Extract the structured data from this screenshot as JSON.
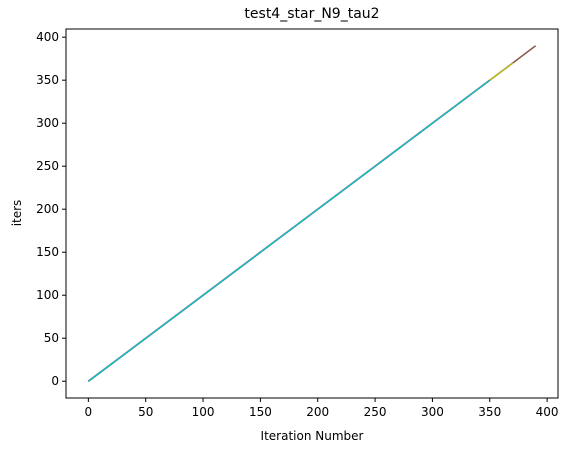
{
  "chart_data": {
    "type": "line",
    "title": "test4_star_N9_tau2",
    "xlabel": "Iteration Number",
    "ylabel": "iters",
    "xlim": [
      -19.5,
      409.5
    ],
    "ylim": [
      -19.5,
      409.5
    ],
    "xticks": [
      0,
      50,
      100,
      150,
      200,
      250,
      300,
      350,
      400
    ],
    "yticks": [
      0,
      50,
      100,
      150,
      200,
      250,
      300,
      350,
      400
    ],
    "grid": false,
    "legend": "none",
    "series": [
      {
        "color": "#8c564b",
        "x": [
          0,
          390
        ],
        "y": [
          0,
          390
        ]
      },
      {
        "color": "#e377c2",
        "x": [
          0,
          370
        ],
        "y": [
          0,
          370
        ]
      },
      {
        "color": "#7f7f7f",
        "x": [
          0,
          370
        ],
        "y": [
          0,
          370
        ]
      },
      {
        "color": "#bcbd22",
        "x": [
          0,
          370
        ],
        "y": [
          0,
          370
        ]
      },
      {
        "color": "#1f77b4",
        "x": [
          0,
          350
        ],
        "y": [
          0,
          350
        ]
      },
      {
        "color": "#ff7f0e",
        "x": [
          0,
          350
        ],
        "y": [
          0,
          350
        ]
      },
      {
        "color": "#2ca02c",
        "x": [
          0,
          350
        ],
        "y": [
          0,
          350
        ]
      },
      {
        "color": "#d62728",
        "x": [
          0,
          350
        ],
        "y": [
          0,
          350
        ]
      },
      {
        "color": "#17becf",
        "x": [
          0,
          350
        ],
        "y": [
          0,
          350
        ]
      }
    ]
  }
}
